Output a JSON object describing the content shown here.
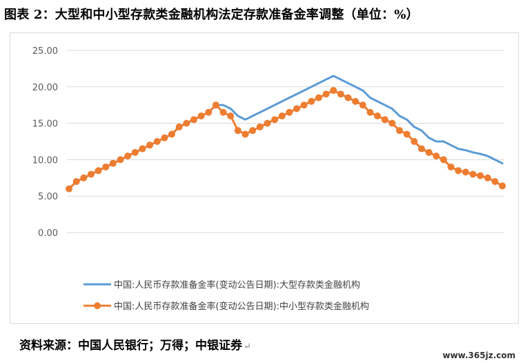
{
  "title": "图表 2：大型和中小型存款类金融机构法定存款准备金率调整（单位：%）",
  "source": "资料来源：中国人民银行；万得；中银证券",
  "return_mark": "↵",
  "watermark": "www.365jz.com",
  "colors": {
    "large": "#5b9bd5",
    "small": "#ed7d31",
    "grid": "#d9d9d9",
    "axis": "#d9d9d9"
  },
  "chart_data": {
    "type": "line",
    "yticks": [
      "0.00",
      "5.00",
      "10.00",
      "15.00",
      "20.00",
      "25.00"
    ],
    "ylim": [
      0,
      25
    ],
    "grid": true,
    "legend_position": "bottom",
    "series": [
      {
        "name": "中国:人民币存款准备金率(变动公告日期):大型存款类金融机构",
        "color": "#5b9bd5",
        "markers": false,
        "values": [
          6.0,
          7.0,
          7.5,
          8.0,
          8.5,
          9.0,
          9.5,
          10.0,
          10.5,
          11.0,
          11.5,
          12.0,
          12.5,
          13.0,
          13.5,
          14.5,
          15.0,
          15.5,
          16.0,
          16.5,
          17.5,
          17.5,
          17.0,
          16.0,
          15.5,
          16.0,
          16.5,
          17.0,
          17.5,
          18.0,
          18.5,
          19.0,
          19.5,
          20.0,
          20.5,
          21.0,
          21.5,
          21.0,
          20.5,
          20.0,
          19.5,
          18.5,
          18.0,
          17.5,
          17.0,
          16.0,
          15.5,
          14.5,
          14.0,
          13.0,
          12.5,
          12.5,
          12.0,
          11.5,
          11.3,
          11.0,
          10.8,
          10.5,
          10.0,
          9.5
        ]
      },
      {
        "name": "中国:人民币存款准备金率(变动公告日期):中小型存款类金融机构",
        "color": "#ed7d31",
        "markers": true,
        "values": [
          6.0,
          7.0,
          7.5,
          8.0,
          8.5,
          9.0,
          9.5,
          10.0,
          10.5,
          11.0,
          11.5,
          12.0,
          12.5,
          13.0,
          13.5,
          14.5,
          15.0,
          15.5,
          16.0,
          16.5,
          17.5,
          16.5,
          16.0,
          14.0,
          13.5,
          14.0,
          14.5,
          15.0,
          15.5,
          16.0,
          16.5,
          17.0,
          17.5,
          18.0,
          18.5,
          19.0,
          19.5,
          19.0,
          18.5,
          18.0,
          17.5,
          16.5,
          16.0,
          15.5,
          15.0,
          14.0,
          13.5,
          12.5,
          11.5,
          11.0,
          10.5,
          10.0,
          9.0,
          8.5,
          8.3,
          8.0,
          7.8,
          7.5,
          7.0,
          6.4
        ]
      }
    ]
  }
}
